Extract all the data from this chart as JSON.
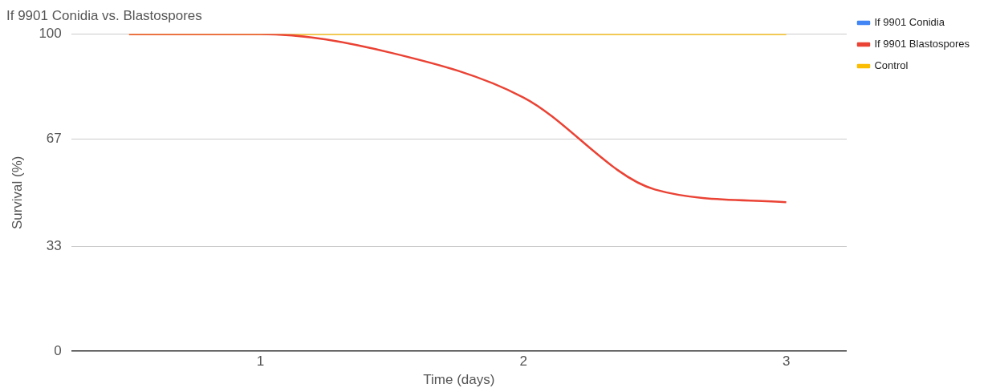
{
  "chart_data": {
    "type": "line",
    "title": "If 9901 Conidia vs. Blastospores",
    "xlabel": "Time (days)",
    "ylabel": "Survival (%)",
    "x": [
      0.5,
      1,
      1.5,
      2,
      2.5,
      3
    ],
    "series": [
      {
        "name": "If 9901 Conidia",
        "color": "#4285f4",
        "values": [
          null,
          null,
          null,
          null,
          null,
          null
        ]
      },
      {
        "name": "If 9901 Blastospores",
        "color": "#ea4335",
        "values": [
          100,
          100,
          94,
          80,
          51,
          47
        ]
      },
      {
        "name": "Control",
        "color": "#fbbc04",
        "values": [
          100,
          100,
          100,
          100,
          100,
          100
        ]
      }
    ],
    "xlim": [
      0.28,
      3.23
    ],
    "xticks": [
      1,
      2,
      3
    ],
    "ylim": [
      0,
      100
    ],
    "yticks": [
      0,
      33,
      67,
      100
    ],
    "grid": "y",
    "legend": "right",
    "marker": "none",
    "line_style": "solid"
  }
}
